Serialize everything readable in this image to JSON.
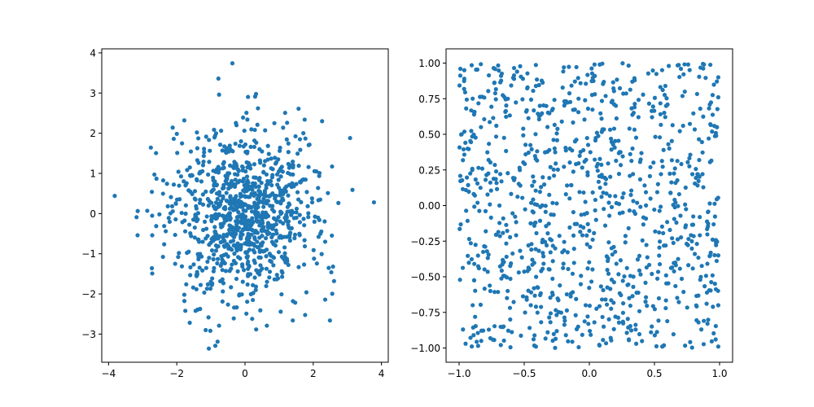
{
  "chart_data": [
    {
      "type": "scatter",
      "title": "",
      "xlabel": "",
      "ylabel": "",
      "xlim": [
        -4.2,
        4.2
      ],
      "ylim": [
        -3.7,
        4.1
      ],
      "xticks": [
        -4,
        -2,
        0,
        2,
        4
      ],
      "yticks": [
        -3,
        -2,
        -1,
        0,
        1,
        2,
        3,
        4
      ],
      "grid": false,
      "legend": "none",
      "color": "#1f77b4",
      "point_count": 1000,
      "distribution": "normal",
      "distribution_params": {
        "mean_x": 0,
        "mean_y": 0,
        "std_x": 1,
        "std_y": 1
      },
      "points": [
        [
          -0.37,
          3.74
        ],
        [
          -0.78,
          3.36
        ],
        [
          -0.76,
          2.96
        ],
        [
          -3.82,
          0.44
        ],
        [
          3.78,
          0.28
        ],
        [
          3.08,
          1.88
        ],
        [
          3.15,
          0.59
        ],
        [
          -3.18,
          -0.09
        ],
        [
          -3.15,
          -0.54
        ],
        [
          -2.73,
          -1.36
        ],
        [
          -2.72,
          -0.54
        ],
        [
          -2.73,
          0.54
        ],
        [
          -2.12,
          2.14
        ],
        [
          -1.78,
          2.32
        ],
        [
          -1.06,
          -3.36
        ],
        [
          -0.87,
          -3.29
        ],
        [
          -0.76,
          -2.79
        ],
        [
          -1.45,
          -2.42
        ],
        [
          -1.78,
          -2.02
        ],
        [
          -1.75,
          -2.42
        ],
        [
          2.49,
          -2.66
        ],
        [
          2.61,
          -1.68
        ],
        [
          2.58,
          -1.32
        ],
        [
          2.53,
          -1.46
        ],
        [
          2.26,
          2.3
        ],
        [
          1.57,
          2.61
        ],
        [
          0.38,
          2.62
        ],
        [
          0.64,
          -2.79
        ],
        [
          1.4,
          -2.66
        ],
        [
          1.71,
          2.0
        ],
        [
          0.21,
          -2.62
        ],
        [
          -0.33,
          -2.61
        ],
        [
          1.61,
          1.85
        ],
        [
          -2.09,
          1.86
        ],
        [
          -1.96,
          -1.08
        ],
        [
          1.8,
          -1.96
        ],
        [
          -1.52,
          -1.84
        ],
        [
          -2.37,
          -0.31
        ],
        [
          2.43,
          0.51
        ],
        [
          2.35,
          -0.7
        ],
        [
          -1.41,
          2.02
        ],
        [
          0.86,
          2.25
        ],
        [
          1.07,
          -2.01
        ],
        [
          0.07,
          2.34
        ],
        [
          -0.25,
          2.2
        ]
      ]
    },
    {
      "type": "scatter",
      "title": "",
      "xlabel": "",
      "ylabel": "",
      "xlim": [
        -1.1,
        1.1
      ],
      "ylim": [
        -1.1,
        1.1
      ],
      "xticks": [
        -1.0,
        -0.5,
        0.0,
        0.5,
        1.0
      ],
      "yticks": [
        -1.0,
        -0.75,
        -0.5,
        -0.25,
        0.0,
        0.25,
        0.5,
        0.75,
        1.0
      ],
      "grid": false,
      "legend": "none",
      "color": "#1f77b4",
      "point_count": 1000,
      "distribution": "uniform",
      "distribution_params": {
        "low": -1,
        "high": 1
      },
      "points": [
        [
          -0.99,
          0.96
        ],
        [
          -0.96,
          0.95
        ],
        [
          -0.96,
          0.89
        ],
        [
          -0.97,
          -0.87
        ],
        [
          -0.95,
          -0.97
        ],
        [
          -0.51,
          0.89
        ],
        [
          -0.41,
          -0.99
        ],
        [
          0.04,
          0.99
        ],
        [
          0.08,
          0.99
        ],
        [
          0.61,
          0.98
        ],
        [
          0.88,
          0.99
        ],
        [
          0.99,
          0.9
        ],
        [
          0.99,
          0.76
        ],
        [
          0.98,
          0.55
        ],
        [
          0.99,
          -0.35
        ],
        [
          0.99,
          -0.7
        ],
        [
          0.99,
          -0.99
        ],
        [
          0.97,
          -0.94
        ],
        [
          0.86,
          -0.87
        ],
        [
          0.56,
          -0.99
        ],
        [
          0.36,
          -0.97
        ],
        [
          -0.32,
          -0.89
        ],
        [
          -0.18,
          -0.91
        ],
        [
          0.11,
          -0.85
        ],
        [
          -0.83,
          -0.95
        ],
        [
          -0.38,
          0.7
        ],
        [
          0.33,
          0.87
        ],
        [
          -0.01,
          0.68
        ],
        [
          0.57,
          0.39
        ],
        [
          -0.11,
          0.45
        ],
        [
          0.15,
          0.02
        ],
        [
          -0.02,
          -0.21
        ],
        [
          0.48,
          -0.48
        ],
        [
          -0.28,
          -0.39
        ],
        [
          -0.69,
          0.0
        ],
        [
          0.72,
          0.56
        ],
        [
          0.83,
          0.22
        ],
        [
          -0.76,
          -0.6
        ],
        [
          0.2,
          -0.78
        ],
        [
          -0.53,
          0.14
        ]
      ]
    }
  ]
}
